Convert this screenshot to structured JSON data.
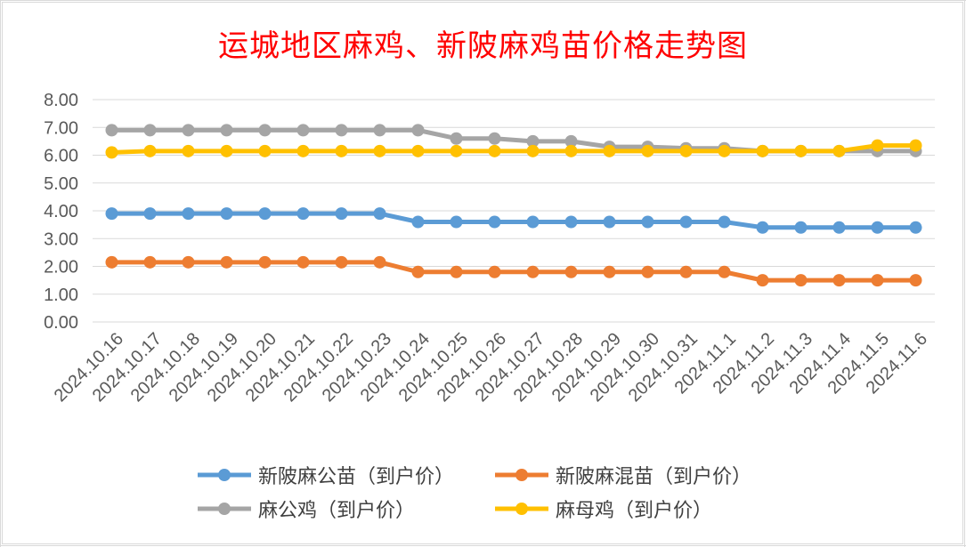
{
  "colors": {
    "title": "#ff0000",
    "axis_text": "#595959",
    "grid": "#d9d9d9"
  },
  "chart_data": {
    "type": "line",
    "title": "运城地区麻鸡、新陂麻鸡苗价格走势图",
    "xlabel": "",
    "ylabel": "",
    "ylim": [
      0,
      8
    ],
    "y_tick_labels": [
      "0.00",
      "1.00",
      "2.00",
      "3.00",
      "4.00",
      "5.00",
      "6.00",
      "7.00",
      "8.00"
    ],
    "grid": "horizontal",
    "legend_position": "bottom",
    "categories": [
      "2024.10.16",
      "2024.10.17",
      "2024.10.18",
      "2024.10.19",
      "2024.10.20",
      "2024.10.21",
      "2024.10.22",
      "2024.10.23",
      "2024.10.24",
      "2024.10.25",
      "2024.10.26",
      "2024.10.27",
      "2024.10.28",
      "2024.10.29",
      "2024.10.30",
      "2024.10.31",
      "2024.11.1",
      "2024.11.2",
      "2024.11.3",
      "2024.11.4",
      "2024.11.5",
      "2024.11.6"
    ],
    "series": [
      {
        "name": "新陂麻公苗（到户价）",
        "color": "#5b9bd5",
        "values": [
          3.9,
          3.9,
          3.9,
          3.9,
          3.9,
          3.9,
          3.9,
          3.9,
          3.6,
          3.6,
          3.6,
          3.6,
          3.6,
          3.6,
          3.6,
          3.6,
          3.6,
          3.4,
          3.4,
          3.4,
          3.4,
          3.4
        ]
      },
      {
        "name": "新陂麻混苗（到户价）",
        "color": "#ed7d31",
        "values": [
          2.15,
          2.15,
          2.15,
          2.15,
          2.15,
          2.15,
          2.15,
          2.15,
          1.8,
          1.8,
          1.8,
          1.8,
          1.8,
          1.8,
          1.8,
          1.8,
          1.8,
          1.5,
          1.5,
          1.5,
          1.5,
          1.5
        ]
      },
      {
        "name": "麻公鸡（到户价）",
        "color": "#a5a5a5",
        "values": [
          6.9,
          6.9,
          6.9,
          6.9,
          6.9,
          6.9,
          6.9,
          6.9,
          6.9,
          6.6,
          6.6,
          6.5,
          6.5,
          6.3,
          6.3,
          6.25,
          6.25,
          6.15,
          6.15,
          6.15,
          6.15,
          6.15
        ]
      },
      {
        "name": "麻母鸡（到户价）",
        "color": "#ffc000",
        "values": [
          6.1,
          6.15,
          6.15,
          6.15,
          6.15,
          6.15,
          6.15,
          6.15,
          6.15,
          6.15,
          6.15,
          6.15,
          6.15,
          6.15,
          6.15,
          6.15,
          6.15,
          6.15,
          6.15,
          6.15,
          6.35,
          6.35
        ]
      }
    ]
  }
}
